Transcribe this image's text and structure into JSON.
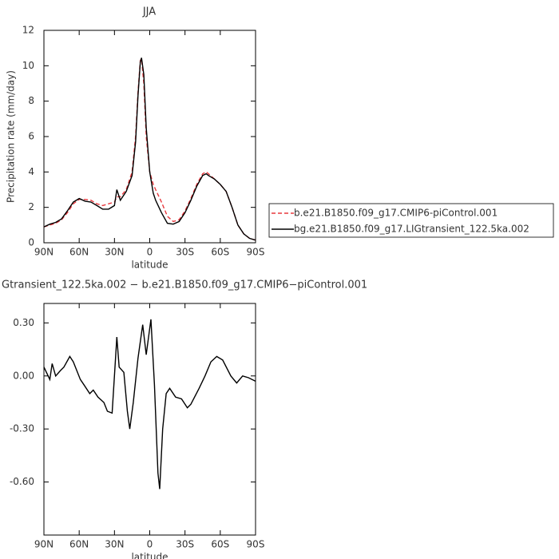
{
  "chart_data": [
    {
      "type": "line",
      "title": "JJA",
      "xlabel": "latitude",
      "ylabel": "Precipitation rate (mm/day)",
      "x": [
        90,
        85,
        80,
        75,
        70,
        65,
        60,
        55,
        50,
        45,
        40,
        35,
        30,
        28,
        25,
        20,
        15,
        12,
        10,
        8,
        7,
        5,
        3,
        0,
        -3,
        -5,
        -10,
        -15,
        -20,
        -25,
        -30,
        -35,
        -40,
        -45,
        -48,
        -50,
        -55,
        -60,
        -65,
        -70,
        -75,
        -80,
        -85,
        -90
      ],
      "series": [
        {
          "name": "b.e21.B1850.f09_g17.CMIP6-piControl.001",
          "color": "#e8383d",
          "dashed": true,
          "values": [
            0.9,
            1.0,
            1.1,
            1.3,
            1.7,
            2.2,
            2.45,
            2.45,
            2.4,
            2.2,
            2.1,
            2.2,
            2.3,
            2.6,
            2.6,
            3.0,
            4.0,
            6.0,
            8.5,
            10.3,
            10.4,
            9.0,
            6.0,
            4.0,
            3.3,
            3.0,
            2.3,
            1.5,
            1.2,
            1.3,
            1.8,
            2.5,
            3.3,
            3.9,
            4.0,
            3.9,
            3.6,
            3.3,
            2.9,
            2.0,
            1.0,
            0.5,
            0.25,
            0.15
          ]
        },
        {
          "name": "bg.e21.B1850.f09_g17.LIGtransient_122.5ka.002",
          "color": "#000000",
          "dashed": false,
          "values": [
            0.9,
            1.05,
            1.15,
            1.35,
            1.8,
            2.3,
            2.5,
            2.35,
            2.3,
            2.1,
            1.9,
            1.9,
            2.1,
            3.0,
            2.4,
            2.9,
            3.8,
            5.7,
            8.3,
            10.2,
            10.45,
            9.5,
            6.5,
            4.0,
            2.8,
            2.4,
            1.7,
            1.1,
            1.05,
            1.2,
            1.7,
            2.4,
            3.2,
            3.8,
            3.9,
            3.8,
            3.6,
            3.3,
            2.9,
            2.0,
            1.0,
            0.5,
            0.25,
            0.15
          ]
        }
      ],
      "xlim": [
        90,
        -90
      ],
      "xticks": [
        {
          "value": 90,
          "label": "90N"
        },
        {
          "value": 60,
          "label": "60N"
        },
        {
          "value": 30,
          "label": "30N"
        },
        0,
        {
          "value": -30,
          "label": "30S"
        },
        {
          "value": -60,
          "label": "60S"
        },
        {
          "value": -90,
          "label": "90S"
        }
      ],
      "ylim": [
        0,
        12
      ],
      "yticks": [
        0,
        2,
        4,
        6,
        8,
        10,
        12
      ],
      "legend": "right"
    },
    {
      "type": "line",
      "title": "Gtransient_122.5ka.002 − b.e21.B1850.f09_g17.CMIP6−piControl.001",
      "xlabel": "latitude",
      "x": [
        90,
        85,
        83,
        80,
        76,
        73,
        68,
        65,
        59,
        56,
        51,
        48,
        44,
        39,
        36,
        32,
        30,
        28,
        26,
        22,
        19,
        17,
        14,
        10,
        6,
        3,
        -1,
        -4,
        -7,
        -8.5,
        -11,
        -14,
        -17,
        -22,
        -27,
        -32,
        -35,
        -42,
        -47,
        -52,
        -57,
        -62,
        -69,
        -74,
        -79,
        -84,
        -90
      ],
      "series": [
        {
          "color": "#000000",
          "dashed": false,
          "values": [
            0.05,
            -0.02,
            0.07,
            0.0,
            0.03,
            0.05,
            0.11,
            0.08,
            -0.02,
            -0.05,
            -0.1,
            -0.08,
            -0.12,
            -0.15,
            -0.2,
            -0.21,
            0.0,
            0.22,
            0.05,
            0.02,
            -0.2,
            -0.3,
            -0.15,
            0.1,
            0.29,
            0.12,
            0.32,
            -0.05,
            -0.55,
            -0.64,
            -0.3,
            -0.1,
            -0.07,
            -0.12,
            -0.13,
            -0.18,
            -0.16,
            -0.07,
            0.0,
            0.08,
            0.11,
            0.09,
            0.0,
            -0.04,
            0.0,
            -0.01,
            -0.03
          ]
        }
      ],
      "xlim": [
        90,
        -90
      ],
      "xticks": [
        {
          "value": 90,
          "label": "90N"
        },
        {
          "value": 60,
          "label": "60N"
        },
        {
          "value": 30,
          "label": "30N"
        },
        0,
        {
          "value": -30,
          "label": "30S"
        },
        {
          "value": -60,
          "label": "60S"
        },
        {
          "value": -90,
          "label": "90S"
        }
      ],
      "ylim": [
        -0.9,
        0.41
      ],
      "yticks": [
        {
          "value": 0.3,
          "label": "0.30"
        },
        {
          "value": 0,
          "label": "0.00"
        },
        {
          "value": -0.3,
          "label": "-0.30"
        },
        {
          "value": -0.6,
          "label": "-0.60"
        }
      ]
    }
  ]
}
